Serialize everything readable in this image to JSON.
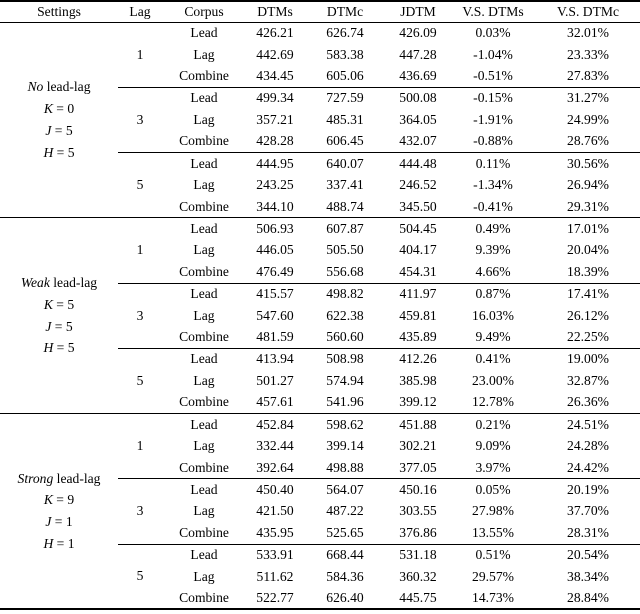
{
  "table": {
    "columns": [
      "Settings",
      "Lag",
      "Corpus",
      "DTMs",
      "DTMc",
      "JDTM",
      "V.S. DTMs",
      "V.S. DTMc"
    ],
    "blocks": [
      {
        "setting": {
          "emph": "No",
          "rest": " lead-lag",
          "params": [
            {
              "var": "K",
              "rest": " = 0"
            },
            {
              "var": "J",
              "rest": " = 5"
            },
            {
              "var": "H",
              "rest": " = 5"
            }
          ]
        },
        "groups": [
          {
            "lag": "1",
            "rows": [
              {
                "corpus": "Lead",
                "dtms": "426.21",
                "dtmc": "626.74",
                "jdtm": "426.09",
                "vs_dtms": "0.03%",
                "vs_dtmc": "32.01%"
              },
              {
                "corpus": "Lag",
                "dtms": "442.69",
                "dtmc": "583.38",
                "jdtm": "447.28",
                "vs_dtms": "-1.04%",
                "vs_dtmc": "23.33%"
              },
              {
                "corpus": "Combine",
                "dtms": "434.45",
                "dtmc": "605.06",
                "jdtm": "436.69",
                "vs_dtms": "-0.51%",
                "vs_dtmc": "27.83%"
              }
            ]
          },
          {
            "lag": "3",
            "rows": [
              {
                "corpus": "Lead",
                "dtms": "499.34",
                "dtmc": "727.59",
                "jdtm": "500.08",
                "vs_dtms": "-0.15%",
                "vs_dtmc": "31.27%"
              },
              {
                "corpus": "Lag",
                "dtms": "357.21",
                "dtmc": "485.31",
                "jdtm": "364.05",
                "vs_dtms": "-1.91%",
                "vs_dtmc": "24.99%"
              },
              {
                "corpus": "Combine",
                "dtms": "428.28",
                "dtmc": "606.45",
                "jdtm": "432.07",
                "vs_dtms": "-0.88%",
                "vs_dtmc": "28.76%"
              }
            ]
          },
          {
            "lag": "5",
            "rows": [
              {
                "corpus": "Lead",
                "dtms": "444.95",
                "dtmc": "640.07",
                "jdtm": "444.48",
                "vs_dtms": "0.11%",
                "vs_dtmc": "30.56%"
              },
              {
                "corpus": "Lag",
                "dtms": "243.25",
                "dtmc": "337.41",
                "jdtm": "246.52",
                "vs_dtms": "-1.34%",
                "vs_dtmc": "26.94%"
              },
              {
                "corpus": "Combine",
                "dtms": "344.10",
                "dtmc": "488.74",
                "jdtm": "345.50",
                "vs_dtms": "-0.41%",
                "vs_dtmc": "29.31%"
              }
            ]
          }
        ]
      },
      {
        "setting": {
          "emph": "Weak",
          "rest": " lead-lag",
          "params": [
            {
              "var": "K",
              "rest": " = 5"
            },
            {
              "var": "J",
              "rest": " = 5"
            },
            {
              "var": "H",
              "rest": " = 5"
            }
          ]
        },
        "groups": [
          {
            "lag": "1",
            "rows": [
              {
                "corpus": "Lead",
                "dtms": "506.93",
                "dtmc": "607.87",
                "jdtm": "504.45",
                "vs_dtms": "0.49%",
                "vs_dtmc": "17.01%"
              },
              {
                "corpus": "Lag",
                "dtms": "446.05",
                "dtmc": "505.50",
                "jdtm": "404.17",
                "vs_dtms": "9.39%",
                "vs_dtmc": "20.04%"
              },
              {
                "corpus": "Combine",
                "dtms": "476.49",
                "dtmc": "556.68",
                "jdtm": "454.31",
                "vs_dtms": "4.66%",
                "vs_dtmc": "18.39%"
              }
            ]
          },
          {
            "lag": "3",
            "rows": [
              {
                "corpus": "Lead",
                "dtms": "415.57",
                "dtmc": "498.82",
                "jdtm": "411.97",
                "vs_dtms": "0.87%",
                "vs_dtmc": "17.41%"
              },
              {
                "corpus": "Lag",
                "dtms": "547.60",
                "dtmc": "622.38",
                "jdtm": "459.81",
                "vs_dtms": "16.03%",
                "vs_dtmc": "26.12%"
              },
              {
                "corpus": "Combine",
                "dtms": "481.59",
                "dtmc": "560.60",
                "jdtm": "435.89",
                "vs_dtms": "9.49%",
                "vs_dtmc": "22.25%"
              }
            ]
          },
          {
            "lag": "5",
            "rows": [
              {
                "corpus": "Lead",
                "dtms": "413.94",
                "dtmc": "508.98",
                "jdtm": "412.26",
                "vs_dtms": "0.41%",
                "vs_dtmc": "19.00%"
              },
              {
                "corpus": "Lag",
                "dtms": "501.27",
                "dtmc": "574.94",
                "jdtm": "385.98",
                "vs_dtms": "23.00%",
                "vs_dtmc": "32.87%"
              },
              {
                "corpus": "Combine",
                "dtms": "457.61",
                "dtmc": "541.96",
                "jdtm": "399.12",
                "vs_dtms": "12.78%",
                "vs_dtmc": "26.36%"
              }
            ]
          }
        ]
      },
      {
        "setting": {
          "emph": "Strong",
          "rest": " lead-lag",
          "params": [
            {
              "var": "K",
              "rest": " = 9"
            },
            {
              "var": "J",
              "rest": " = 1"
            },
            {
              "var": "H",
              "rest": " = 1"
            }
          ]
        },
        "groups": [
          {
            "lag": "1",
            "rows": [
              {
                "corpus": "Lead",
                "dtms": "452.84",
                "dtmc": "598.62",
                "jdtm": "451.88",
                "vs_dtms": "0.21%",
                "vs_dtmc": "24.51%"
              },
              {
                "corpus": "Lag",
                "dtms": "332.44",
                "dtmc": "399.14",
                "jdtm": "302.21",
                "vs_dtms": "9.09%",
                "vs_dtmc": "24.28%"
              },
              {
                "corpus": "Combine",
                "dtms": "392.64",
                "dtmc": "498.88",
                "jdtm": "377.05",
                "vs_dtms": "3.97%",
                "vs_dtmc": "24.42%"
              }
            ]
          },
          {
            "lag": "3",
            "rows": [
              {
                "corpus": "Lead",
                "dtms": "450.40",
                "dtmc": "564.07",
                "jdtm": "450.16",
                "vs_dtms": "0.05%",
                "vs_dtmc": "20.19%"
              },
              {
                "corpus": "Lag",
                "dtms": "421.50",
                "dtmc": "487.22",
                "jdtm": "303.55",
                "vs_dtms": "27.98%",
                "vs_dtmc": "37.70%"
              },
              {
                "corpus": "Combine",
                "dtms": "435.95",
                "dtmc": "525.65",
                "jdtm": "376.86",
                "vs_dtms": "13.55%",
                "vs_dtmc": "28.31%"
              }
            ]
          },
          {
            "lag": "5",
            "rows": [
              {
                "corpus": "Lead",
                "dtms": "533.91",
                "dtmc": "668.44",
                "jdtm": "531.18",
                "vs_dtms": "0.51%",
                "vs_dtmc": "20.54%"
              },
              {
                "corpus": "Lag",
                "dtms": "511.62",
                "dtmc": "584.36",
                "jdtm": "360.32",
                "vs_dtms": "29.57%",
                "vs_dtmc": "38.34%"
              },
              {
                "corpus": "Combine",
                "dtms": "522.77",
                "dtmc": "626.40",
                "jdtm": "445.75",
                "vs_dtms": "14.73%",
                "vs_dtmc": "28.84%"
              }
            ]
          }
        ]
      }
    ]
  }
}
